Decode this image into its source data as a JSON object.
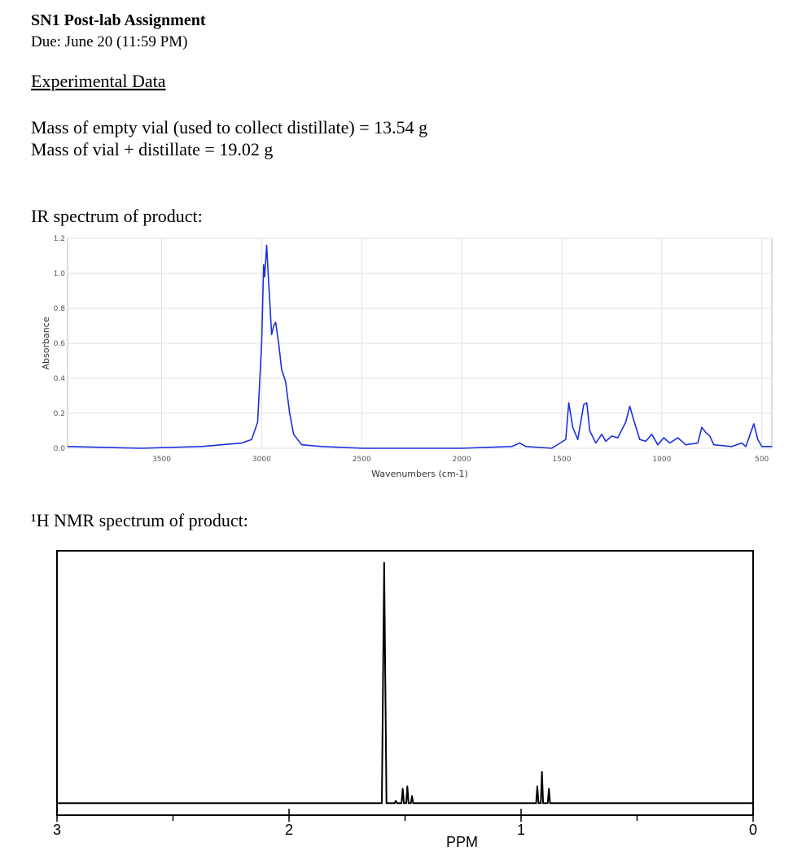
{
  "header": {
    "title": "SN1 Post-lab Assignment",
    "due": "Due: June 20 (11:59 PM)"
  },
  "section_title": "Experimental Data",
  "measurements": [
    "Mass of empty vial (used to collect distillate) = 13.54 g",
    "Mass of vial + distillate = 19.02 g"
  ],
  "chart_data": [
    {
      "type": "line",
      "title": "IR spectrum of product:",
      "x_label": "Wavenumbers (cm-1)",
      "y_label": "Absorbance",
      "xlim": [
        3970,
        450
      ],
      "xticks": [
        3500,
        3000,
        2500,
        2000,
        1500,
        1000,
        500
      ],
      "ylim": [
        0,
        1.2
      ],
      "yticks": [
        {
          "value": 0,
          "label": "0.0"
        },
        0.2,
        0.4,
        0.6,
        0.8,
        {
          "value": 1,
          "label": "1.0"
        },
        1.2
      ],
      "grid": true,
      "series": [
        {
          "color": "#1b2fe0",
          "x": [
            3970,
            3600,
            3300,
            3200,
            3100,
            3050,
            3020,
            3000,
            2990,
            2985,
            2975,
            2965,
            2950,
            2940,
            2930,
            2915,
            2900,
            2880,
            2860,
            2840,
            2800,
            2700,
            2500,
            2000,
            1750,
            1710,
            1680,
            1550,
            1480,
            1465,
            1445,
            1420,
            1390,
            1375,
            1360,
            1330,
            1300,
            1280,
            1250,
            1220,
            1180,
            1160,
            1140,
            1110,
            1080,
            1050,
            1020,
            990,
            960,
            920,
            880,
            820,
            800,
            780,
            760,
            740,
            650,
            600,
            580,
            540,
            520,
            500,
            450
          ],
          "values": [
            0.01,
            0.0,
            0.01,
            0.02,
            0.03,
            0.05,
            0.15,
            0.6,
            1.05,
            0.98,
            1.16,
            0.95,
            0.65,
            0.7,
            0.72,
            0.6,
            0.45,
            0.38,
            0.2,
            0.08,
            0.02,
            0.01,
            0.0,
            0.0,
            0.01,
            0.03,
            0.01,
            0.0,
            0.05,
            0.26,
            0.12,
            0.05,
            0.25,
            0.26,
            0.1,
            0.03,
            0.08,
            0.04,
            0.07,
            0.06,
            0.15,
            0.24,
            0.16,
            0.05,
            0.04,
            0.08,
            0.02,
            0.06,
            0.03,
            0.06,
            0.02,
            0.03,
            0.12,
            0.09,
            0.07,
            0.02,
            0.01,
            0.03,
            0.01,
            0.14,
            0.05,
            0.01,
            0.01
          ]
        }
      ]
    },
    {
      "type": "line",
      "title": "¹H NMR spectrum of product:",
      "x_label": "PPM",
      "xlim": [
        3,
        0
      ],
      "xticks": [
        3,
        2,
        1,
        0
      ],
      "minor_xticks": [
        2.5,
        1.5,
        0.5
      ],
      "ylim": [
        -5,
        105
      ],
      "grid": false,
      "series": [
        {
          "color": "#000000",
          "x": [
            3,
            1.6,
            1.59,
            1.58,
            1.545,
            1.54,
            1.535,
            1.515,
            1.51,
            1.505,
            1.495,
            1.49,
            1.485,
            1.475,
            1.47,
            1.465,
            0.935,
            0.93,
            0.925,
            0.915,
            0.91,
            0.905,
            0.885,
            0.88,
            0.875,
            0
          ],
          "values": [
            0,
            0,
            100,
            0,
            0,
            1,
            0,
            0,
            6,
            0,
            0,
            7,
            0,
            0,
            3,
            0,
            0,
            7,
            0,
            0,
            13,
            0,
            0,
            6,
            0,
            0
          ]
        }
      ]
    }
  ]
}
